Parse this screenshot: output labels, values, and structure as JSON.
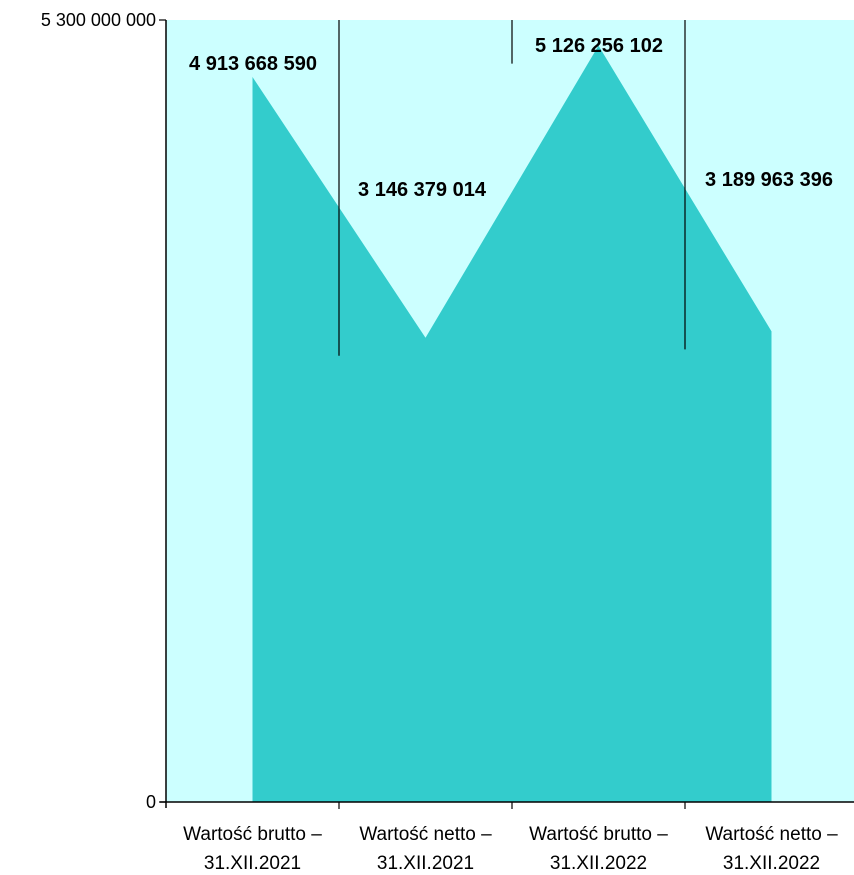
{
  "colors": {
    "plot_background": "#ccffff",
    "area_fill": "#33cccc",
    "axis": "#000000"
  },
  "chart_data": {
    "type": "area",
    "title": "",
    "xlabel": "",
    "ylabel": "",
    "ylim": [
      0,
      5300000000
    ],
    "y_ticks": [
      {
        "value": 0,
        "label": "0"
      },
      {
        "value": 5300000000,
        "label": "5 300 000 000"
      }
    ],
    "categories": [
      {
        "line1": "Wartość brutto –",
        "line2": "31.XII.2021"
      },
      {
        "line1": "Wartość netto –",
        "line2": "31.XII.2021"
      },
      {
        "line1": "Wartość brutto –",
        "line2": "31.XII.2022"
      },
      {
        "line1": "Wartość netto –",
        "line2": "31.XII.2022"
      }
    ],
    "values": [
      4913668590,
      3146379014,
      5126256102,
      3189963396
    ],
    "value_labels": [
      "4 913 668 590",
      "3 146 379 014",
      "5 126 256 102",
      "3 189 963 396"
    ],
    "grid": false,
    "legend": "none"
  }
}
